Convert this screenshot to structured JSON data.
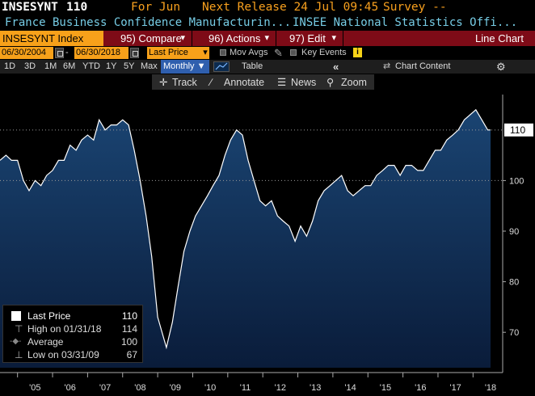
{
  "header": {
    "ticker": "INSESYNT",
    "last": "110",
    "for_label": "For Jun",
    "next_release": "Next Release 24 Jul 09:45",
    "survey": "Survey --"
  },
  "description": {
    "name": "France Business Confidence Manufacturin...",
    "source": "INSEE National Statistics Offi..."
  },
  "function_bar": {
    "security": "INSESYNT Index",
    "compare": "95) Compare",
    "actions": "96) Actions",
    "edit": "97) Edit",
    "chart_type": "Line Chart"
  },
  "options": {
    "start_date": "06/30/2004",
    "end_date": "06/30/2018",
    "field": "Last Price",
    "mov_avgs": "Mov Avgs",
    "key_events": "Key Events"
  },
  "periods": {
    "items": [
      "1D",
      "3D",
      "1M",
      "6M",
      "YTD",
      "1Y",
      "5Y",
      "Max"
    ],
    "frequency": "Monthly ▼",
    "table": "Table",
    "chart_content": "Chart Content"
  },
  "tools": {
    "track": "Track",
    "annotate": "Annotate",
    "news": "News",
    "zoom": "Zoom"
  },
  "legend": {
    "last_price_label": "Last Price",
    "last_price_value": "110",
    "high_label": "High on 01/31/18",
    "high_value": "114",
    "average_label": "Average",
    "average_value": "100",
    "low_label": "Low on 03/31/09",
    "low_value": "67"
  },
  "colors": {
    "accent": "#f7a11a",
    "function_bar": "#7e0b17",
    "area_top": "#1a4472",
    "area_bottom": "#0a1c3a",
    "line": "#ffffff",
    "average_line": "#888888"
  },
  "chart_data": {
    "type": "area",
    "title": "",
    "xlabel": "",
    "ylabel": "",
    "ylim": [
      63,
      117
    ],
    "xlim": [
      "2004-06",
      "2018-06"
    ],
    "yticks": [
      70,
      80,
      90,
      100
    ],
    "xticks": [
      "'05",
      "'06",
      "'07",
      "'08",
      "'09",
      "'10",
      "'11",
      "'12",
      "'13",
      "'14",
      "'15",
      "'16",
      "'17",
      "'18"
    ],
    "last_value_label": "110",
    "average": 100,
    "grid": false,
    "series": [
      {
        "name": "Last Price",
        "values": [
          [
            2004.5,
            104
          ],
          [
            2004.67,
            105
          ],
          [
            2004.83,
            104
          ],
          [
            2005.0,
            104
          ],
          [
            2005.17,
            100
          ],
          [
            2005.33,
            98
          ],
          [
            2005.5,
            100
          ],
          [
            2005.67,
            99
          ],
          [
            2005.83,
            101
          ],
          [
            2006.0,
            102
          ],
          [
            2006.17,
            104
          ],
          [
            2006.33,
            104
          ],
          [
            2006.5,
            107
          ],
          [
            2006.67,
            106
          ],
          [
            2006.83,
            108
          ],
          [
            2007.0,
            109
          ],
          [
            2007.17,
            108
          ],
          [
            2007.33,
            112
          ],
          [
            2007.5,
            110
          ],
          [
            2007.67,
            111
          ],
          [
            2007.83,
            111
          ],
          [
            2008.0,
            112
          ],
          [
            2008.17,
            111
          ],
          [
            2008.33,
            106
          ],
          [
            2008.5,
            100
          ],
          [
            2008.67,
            93
          ],
          [
            2008.83,
            85
          ],
          [
            2009.0,
            73
          ],
          [
            2009.25,
            67
          ],
          [
            2009.42,
            72
          ],
          [
            2009.58,
            79
          ],
          [
            2009.75,
            86
          ],
          [
            2009.92,
            90
          ],
          [
            2010.08,
            93
          ],
          [
            2010.25,
            95
          ],
          [
            2010.42,
            97
          ],
          [
            2010.58,
            99
          ],
          [
            2010.75,
            101
          ],
          [
            2010.92,
            105
          ],
          [
            2011.08,
            108
          ],
          [
            2011.25,
            110
          ],
          [
            2011.42,
            109
          ],
          [
            2011.58,
            104
          ],
          [
            2011.75,
            100
          ],
          [
            2011.92,
            96
          ],
          [
            2012.08,
            95
          ],
          [
            2012.25,
            96
          ],
          [
            2012.42,
            93
          ],
          [
            2012.58,
            92
          ],
          [
            2012.75,
            91
          ],
          [
            2012.92,
            88
          ],
          [
            2013.08,
            91
          ],
          [
            2013.25,
            89
          ],
          [
            2013.42,
            92
          ],
          [
            2013.58,
            96
          ],
          [
            2013.75,
            98
          ],
          [
            2013.92,
            99
          ],
          [
            2014.08,
            100
          ],
          [
            2014.25,
            101
          ],
          [
            2014.42,
            98
          ],
          [
            2014.58,
            97
          ],
          [
            2014.75,
            98
          ],
          [
            2014.92,
            99
          ],
          [
            2015.08,
            99
          ],
          [
            2015.25,
            101
          ],
          [
            2015.42,
            102
          ],
          [
            2015.58,
            103
          ],
          [
            2015.75,
            103
          ],
          [
            2015.92,
            101
          ],
          [
            2016.08,
            103
          ],
          [
            2016.25,
            103
          ],
          [
            2016.42,
            102
          ],
          [
            2016.58,
            102
          ],
          [
            2016.75,
            104
          ],
          [
            2016.92,
            106
          ],
          [
            2017.08,
            106
          ],
          [
            2017.25,
            108
          ],
          [
            2017.42,
            109
          ],
          [
            2017.58,
            110
          ],
          [
            2017.75,
            112
          ],
          [
            2018.08,
            114
          ],
          [
            2018.25,
            112
          ],
          [
            2018.42,
            110
          ],
          [
            2018.5,
            110
          ]
        ]
      }
    ]
  }
}
